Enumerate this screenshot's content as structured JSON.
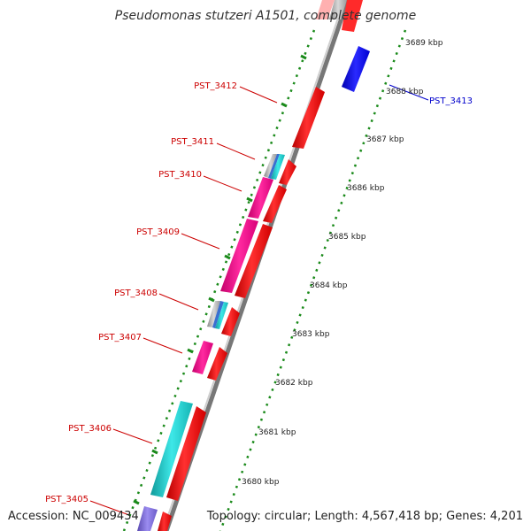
{
  "title": "Pseudomonas stutzeri A1501, complete genome",
  "footer": {
    "accession": "Accession: NC_009434",
    "summary": "Topology: circular; Length: 4,567,418 bp; Genes: 4,201"
  },
  "colors": {
    "forward_cds": "#ff0000",
    "reverse_cds": "#1010ff",
    "magenta_feature": "#ff1493",
    "cyan_feature": "#1fd5d5",
    "tick_green": "#1a8a1a",
    "label_red": "#cc0000",
    "label_blue": "#0000cc",
    "backbone": "#777777"
  },
  "kbp_ticks": [
    "3689 kbp",
    "3688 kbp",
    "3687 kbp",
    "3686 kbp",
    "3685 kbp",
    "3684 kbp",
    "3683 kbp",
    "3682 kbp",
    "3681 kbp",
    "3680 kbp"
  ],
  "gene_labels": [
    {
      "name": "PST_3413",
      "color": "blue"
    },
    {
      "name": "PST_3412",
      "color": "red"
    },
    {
      "name": "PST_3411",
      "color": "red"
    },
    {
      "name": "PST_3410",
      "color": "red"
    },
    {
      "name": "PST_3409",
      "color": "red"
    },
    {
      "name": "PST_3408",
      "color": "red"
    },
    {
      "name": "PST_3407",
      "color": "red"
    },
    {
      "name": "PST_3406",
      "color": "red"
    },
    {
      "name": "PST_3405",
      "color": "red"
    }
  ],
  "icons": {
    "forward_arrow": "forward-gene-arrow-icon",
    "reverse_arrow": "reverse-gene-arrow-icon"
  }
}
